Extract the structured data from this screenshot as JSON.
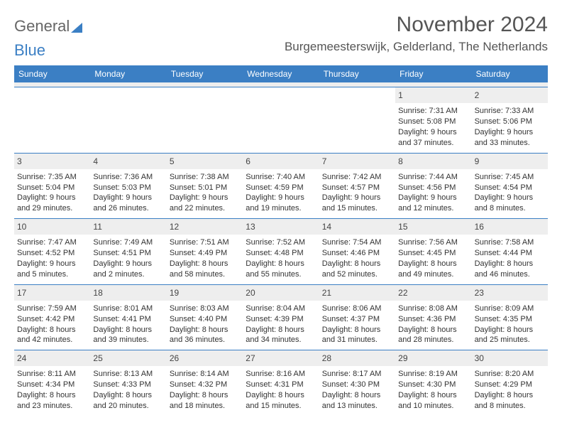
{
  "logo": {
    "text1": "General",
    "text2": "Blue"
  },
  "title": "November 2024",
  "location": "Burgemeesterswijk, Gelderland, The Netherlands",
  "colors": {
    "accent": "#3b7fc4",
    "header_text": "#ffffff",
    "daynum_bg": "#eeeeee",
    "body_text": "#333333",
    "title_text": "#555555"
  },
  "layout": {
    "columns": 7,
    "rows": 5,
    "cell_fontsize": 11,
    "title_fontsize": 30,
    "location_fontsize": 17
  },
  "day_headers": [
    "Sunday",
    "Monday",
    "Tuesday",
    "Wednesday",
    "Thursday",
    "Friday",
    "Saturday"
  ],
  "weeks": [
    [
      {
        "day": "",
        "sunrise": "",
        "sunset": "",
        "daylight": ""
      },
      {
        "day": "",
        "sunrise": "",
        "sunset": "",
        "daylight": ""
      },
      {
        "day": "",
        "sunrise": "",
        "sunset": "",
        "daylight": ""
      },
      {
        "day": "",
        "sunrise": "",
        "sunset": "",
        "daylight": ""
      },
      {
        "day": "",
        "sunrise": "",
        "sunset": "",
        "daylight": ""
      },
      {
        "day": "1",
        "sunrise": "Sunrise: 7:31 AM",
        "sunset": "Sunset: 5:08 PM",
        "daylight": "Daylight: 9 hours and 37 minutes."
      },
      {
        "day": "2",
        "sunrise": "Sunrise: 7:33 AM",
        "sunset": "Sunset: 5:06 PM",
        "daylight": "Daylight: 9 hours and 33 minutes."
      }
    ],
    [
      {
        "day": "3",
        "sunrise": "Sunrise: 7:35 AM",
        "sunset": "Sunset: 5:04 PM",
        "daylight": "Daylight: 9 hours and 29 minutes."
      },
      {
        "day": "4",
        "sunrise": "Sunrise: 7:36 AM",
        "sunset": "Sunset: 5:03 PM",
        "daylight": "Daylight: 9 hours and 26 minutes."
      },
      {
        "day": "5",
        "sunrise": "Sunrise: 7:38 AM",
        "sunset": "Sunset: 5:01 PM",
        "daylight": "Daylight: 9 hours and 22 minutes."
      },
      {
        "day": "6",
        "sunrise": "Sunrise: 7:40 AM",
        "sunset": "Sunset: 4:59 PM",
        "daylight": "Daylight: 9 hours and 19 minutes."
      },
      {
        "day": "7",
        "sunrise": "Sunrise: 7:42 AM",
        "sunset": "Sunset: 4:57 PM",
        "daylight": "Daylight: 9 hours and 15 minutes."
      },
      {
        "day": "8",
        "sunrise": "Sunrise: 7:44 AM",
        "sunset": "Sunset: 4:56 PM",
        "daylight": "Daylight: 9 hours and 12 minutes."
      },
      {
        "day": "9",
        "sunrise": "Sunrise: 7:45 AM",
        "sunset": "Sunset: 4:54 PM",
        "daylight": "Daylight: 9 hours and 8 minutes."
      }
    ],
    [
      {
        "day": "10",
        "sunrise": "Sunrise: 7:47 AM",
        "sunset": "Sunset: 4:52 PM",
        "daylight": "Daylight: 9 hours and 5 minutes."
      },
      {
        "day": "11",
        "sunrise": "Sunrise: 7:49 AM",
        "sunset": "Sunset: 4:51 PM",
        "daylight": "Daylight: 9 hours and 2 minutes."
      },
      {
        "day": "12",
        "sunrise": "Sunrise: 7:51 AM",
        "sunset": "Sunset: 4:49 PM",
        "daylight": "Daylight: 8 hours and 58 minutes."
      },
      {
        "day": "13",
        "sunrise": "Sunrise: 7:52 AM",
        "sunset": "Sunset: 4:48 PM",
        "daylight": "Daylight: 8 hours and 55 minutes."
      },
      {
        "day": "14",
        "sunrise": "Sunrise: 7:54 AM",
        "sunset": "Sunset: 4:46 PM",
        "daylight": "Daylight: 8 hours and 52 minutes."
      },
      {
        "day": "15",
        "sunrise": "Sunrise: 7:56 AM",
        "sunset": "Sunset: 4:45 PM",
        "daylight": "Daylight: 8 hours and 49 minutes."
      },
      {
        "day": "16",
        "sunrise": "Sunrise: 7:58 AM",
        "sunset": "Sunset: 4:44 PM",
        "daylight": "Daylight: 8 hours and 46 minutes."
      }
    ],
    [
      {
        "day": "17",
        "sunrise": "Sunrise: 7:59 AM",
        "sunset": "Sunset: 4:42 PM",
        "daylight": "Daylight: 8 hours and 42 minutes."
      },
      {
        "day": "18",
        "sunrise": "Sunrise: 8:01 AM",
        "sunset": "Sunset: 4:41 PM",
        "daylight": "Daylight: 8 hours and 39 minutes."
      },
      {
        "day": "19",
        "sunrise": "Sunrise: 8:03 AM",
        "sunset": "Sunset: 4:40 PM",
        "daylight": "Daylight: 8 hours and 36 minutes."
      },
      {
        "day": "20",
        "sunrise": "Sunrise: 8:04 AM",
        "sunset": "Sunset: 4:39 PM",
        "daylight": "Daylight: 8 hours and 34 minutes."
      },
      {
        "day": "21",
        "sunrise": "Sunrise: 8:06 AM",
        "sunset": "Sunset: 4:37 PM",
        "daylight": "Daylight: 8 hours and 31 minutes."
      },
      {
        "day": "22",
        "sunrise": "Sunrise: 8:08 AM",
        "sunset": "Sunset: 4:36 PM",
        "daylight": "Daylight: 8 hours and 28 minutes."
      },
      {
        "day": "23",
        "sunrise": "Sunrise: 8:09 AM",
        "sunset": "Sunset: 4:35 PM",
        "daylight": "Daylight: 8 hours and 25 minutes."
      }
    ],
    [
      {
        "day": "24",
        "sunrise": "Sunrise: 8:11 AM",
        "sunset": "Sunset: 4:34 PM",
        "daylight": "Daylight: 8 hours and 23 minutes."
      },
      {
        "day": "25",
        "sunrise": "Sunrise: 8:13 AM",
        "sunset": "Sunset: 4:33 PM",
        "daylight": "Daylight: 8 hours and 20 minutes."
      },
      {
        "day": "26",
        "sunrise": "Sunrise: 8:14 AM",
        "sunset": "Sunset: 4:32 PM",
        "daylight": "Daylight: 8 hours and 18 minutes."
      },
      {
        "day": "27",
        "sunrise": "Sunrise: 8:16 AM",
        "sunset": "Sunset: 4:31 PM",
        "daylight": "Daylight: 8 hours and 15 minutes."
      },
      {
        "day": "28",
        "sunrise": "Sunrise: 8:17 AM",
        "sunset": "Sunset: 4:30 PM",
        "daylight": "Daylight: 8 hours and 13 minutes."
      },
      {
        "day": "29",
        "sunrise": "Sunrise: 8:19 AM",
        "sunset": "Sunset: 4:30 PM",
        "daylight": "Daylight: 8 hours and 10 minutes."
      },
      {
        "day": "30",
        "sunrise": "Sunrise: 8:20 AM",
        "sunset": "Sunset: 4:29 PM",
        "daylight": "Daylight: 8 hours and 8 minutes."
      }
    ]
  ]
}
